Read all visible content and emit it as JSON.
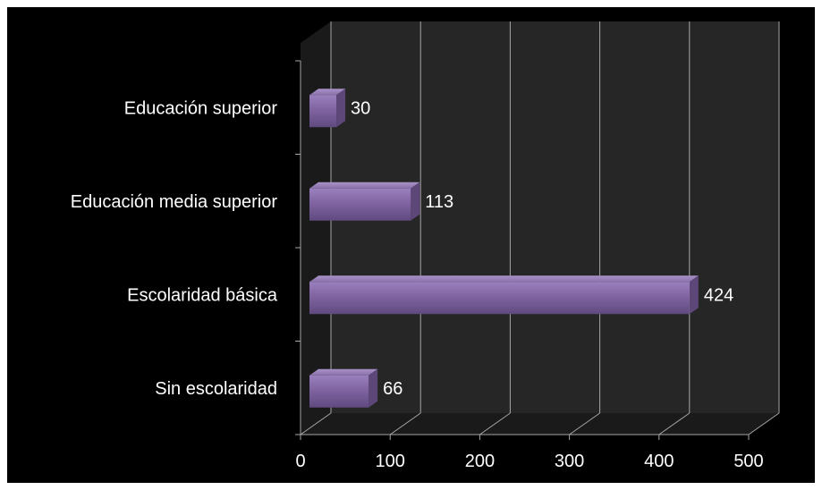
{
  "chart_data": {
    "type": "bar",
    "orientation": "horizontal",
    "categories": [
      "Sin escolaridad",
      "Escolaridad básica",
      "Educación media superior",
      "Educación superior"
    ],
    "values": [
      66,
      424,
      113,
      30
    ],
    "data_labels": [
      "66",
      "424",
      "113",
      "30"
    ],
    "xlim": [
      0,
      500
    ],
    "x_ticks": [
      "0",
      "100",
      "200",
      "300",
      "400",
      "500"
    ],
    "grid": true,
    "style": "3d",
    "colors": {
      "bar": "#8064a2",
      "background": "#000000",
      "text": "#ffffff",
      "gridline": "#a6a6a6",
      "wall": "#262626",
      "floor": "#1a1a1a"
    }
  }
}
